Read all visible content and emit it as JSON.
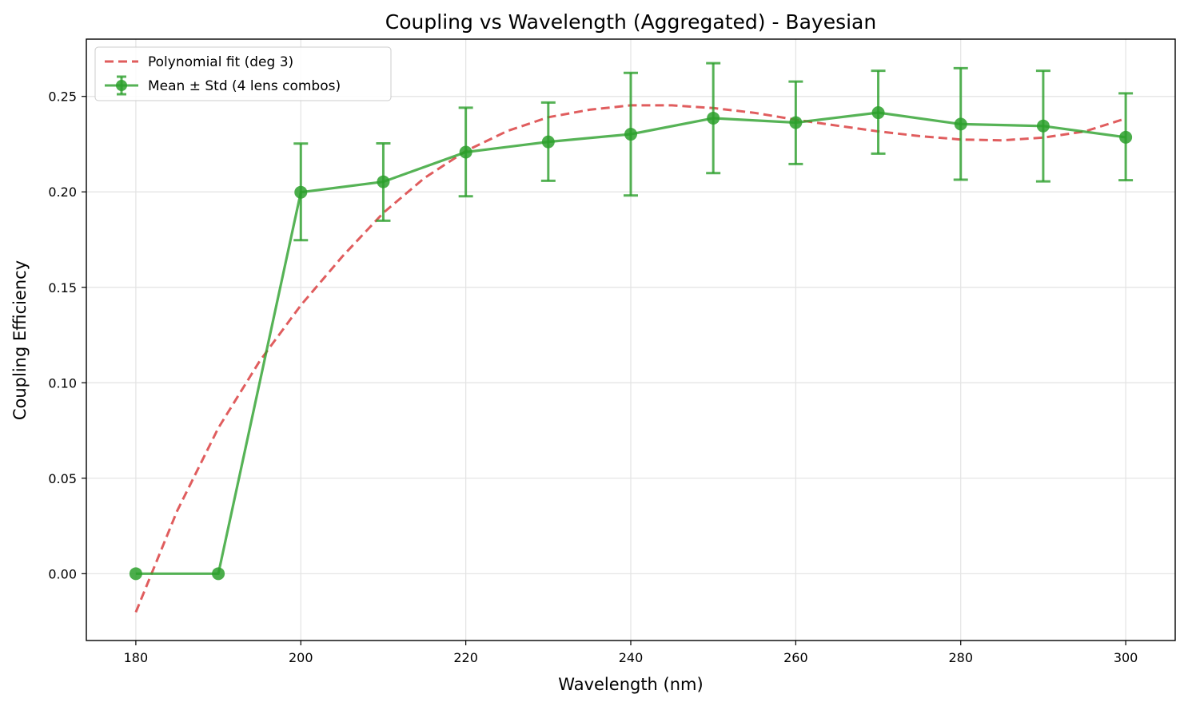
{
  "chart_data": {
    "type": "line",
    "title": "Coupling vs Wavelength (Aggregated) - Bayesian",
    "xlabel": "Wavelength (nm)",
    "ylabel": "Coupling Efficiency",
    "xlim": [
      174,
      306
    ],
    "ylim": [
      -0.035,
      0.28
    ],
    "x_ticks": [
      180,
      200,
      220,
      240,
      260,
      280,
      300
    ],
    "x_tick_labels": [
      "180",
      "200",
      "220",
      "240",
      "260",
      "280",
      "300"
    ],
    "y_ticks": [
      0.0,
      0.05,
      0.1,
      0.15,
      0.2,
      0.25
    ],
    "y_tick_labels": [
      "0.00",
      "0.05",
      "0.10",
      "0.15",
      "0.20",
      "0.25"
    ],
    "grid": true,
    "legend_position": "top-left",
    "series": [
      {
        "name": "Mean ± Std (4 lens combos)",
        "color": "#2ca02c",
        "style": "line-markers-errorbars",
        "x": [
          180,
          190,
          200,
          210,
          220,
          230,
          240,
          250,
          260,
          270,
          280,
          290,
          300
        ],
        "y": [
          0.0,
          0.0,
          0.1998,
          0.2053,
          0.2208,
          0.2262,
          0.2302,
          0.2386,
          0.2363,
          0.2415,
          0.2355,
          0.2345,
          0.2286
        ],
        "err_low": [
          null,
          null,
          0.1747,
          0.1849,
          0.1977,
          0.2058,
          0.1981,
          0.2098,
          0.2146,
          0.22,
          0.2064,
          0.2055,
          0.2061
        ],
        "err_high": [
          null,
          null,
          0.2253,
          0.2254,
          0.2441,
          0.2468,
          0.2623,
          0.2674,
          0.2578,
          0.2634,
          0.2648,
          0.2634,
          0.2516
        ]
      },
      {
        "name": "Polynomial fit (deg 3)",
        "color": "#d62728",
        "style": "dashed",
        "x": [
          180,
          185,
          190,
          195,
          200,
          205,
          210,
          215,
          220,
          225,
          230,
          235,
          240,
          245,
          250,
          255,
          260,
          265,
          270,
          275,
          280,
          285,
          290,
          295,
          300
        ],
        "y": [
          -0.0202,
          0.0328,
          0.0763,
          0.1113,
          0.1406,
          0.166,
          0.189,
          0.2073,
          0.2214,
          0.2318,
          0.2391,
          0.243,
          0.2453,
          0.2453,
          0.2439,
          0.2414,
          0.2378,
          0.2347,
          0.2317,
          0.2292,
          0.2274,
          0.227,
          0.2284,
          0.2316,
          0.2384
        ]
      }
    ]
  }
}
